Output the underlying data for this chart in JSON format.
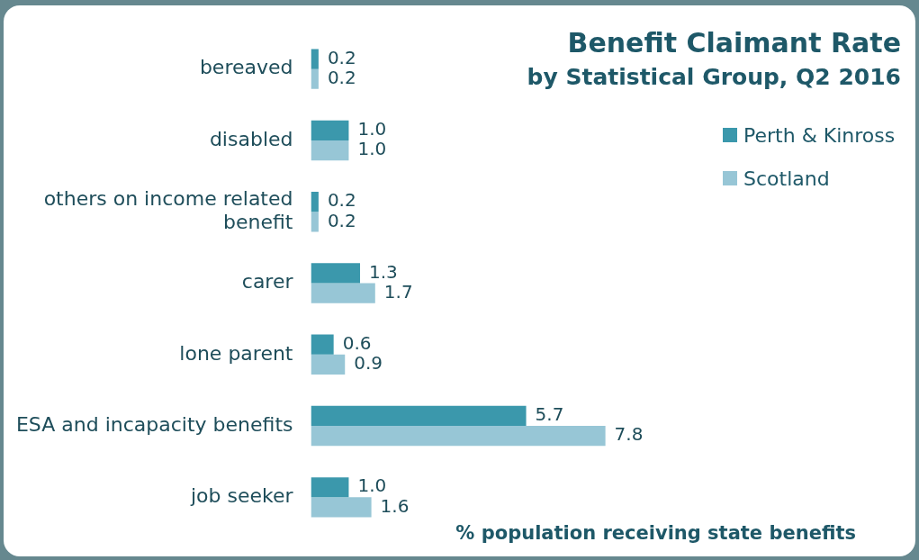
{
  "chart_data": {
    "type": "bar",
    "orientation": "horizontal",
    "title": "Benefit Claimant Rate",
    "subtitle": "by Statistical Group, Q2 2016",
    "xlabel": "% population receiving state benefits",
    "categories": [
      "bereaved",
      "disabled",
      "others on income related benefit",
      "carer",
      "lone parent",
      "ESA and incapacity benefits",
      "job seeker"
    ],
    "series": [
      {
        "name": "Perth & Kinross",
        "color": "#3b98ac",
        "values": [
          0.2,
          1.0,
          0.2,
          1.3,
          0.6,
          5.7,
          1.0
        ],
        "value_labels": [
          "0.2",
          "1.0",
          "0.2",
          "1.3",
          "0.6",
          "5.7",
          "1.0"
        ]
      },
      {
        "name": "Scotland",
        "color": "#97c6d6",
        "values": [
          0.2,
          1.0,
          0.2,
          1.7,
          0.9,
          7.8,
          1.6
        ],
        "value_labels": [
          "0.2",
          "1.0",
          "0.2",
          "1.7",
          "0.9",
          "7.8",
          "1.6"
        ]
      }
    ],
    "legend": "top right"
  }
}
